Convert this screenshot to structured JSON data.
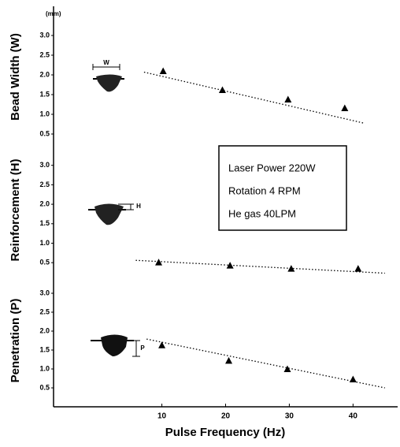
{
  "chart_data": [
    {
      "type": "scatter",
      "ylabel": "Bead Width (W)",
      "unit_label": "(mm)",
      "icon_label": "W",
      "ylim": [
        0.2,
        3.7
      ],
      "yticks": [
        0.5,
        {
          "value": 1.0,
          "label": "1.0"
        },
        1.5,
        {
          "value": 2.0,
          "label": "2.0"
        },
        2.5,
        {
          "value": 3.0,
          "label": "3.0"
        }
      ],
      "x": [
        10.2,
        19.5,
        29.8,
        38.7
      ],
      "values": [
        2.09,
        1.61,
        1.37,
        1.15
      ],
      "color": "#000000",
      "trend": {
        "x": [
          7.2,
          41.6
        ],
        "values": [
          2.07,
          0.78
        ]
      }
    },
    {
      "type": "scatter",
      "ylabel": "Reinforcement (H)",
      "icon_label": "H",
      "ylim": [
        0.2,
        3.5
      ],
      "yticks": [
        0.5,
        {
          "value": 1.0,
          "label": "1.0"
        },
        1.5,
        {
          "value": 2.0,
          "label": "2.0"
        },
        2.5,
        {
          "value": 3.0,
          "label": "3.0"
        }
      ],
      "x": [
        9.5,
        20.7,
        30.3,
        40.8
      ],
      "values": [
        0.5,
        0.42,
        0.34,
        0.34
      ],
      "color": "#000000",
      "trend": {
        "x": [
          5.9,
          45
        ],
        "values": [
          0.56,
          0.23
        ]
      },
      "annotations": [
        "Laser Power 220W",
        "Rotation 4 RPM",
        "He gas 40LPM"
      ]
    },
    {
      "type": "scatter",
      "ylabel": "Penetration (P)",
      "icon_label": "P",
      "ylim": [
        0,
        3.5
      ],
      "yticks": [
        0.5,
        {
          "value": 1.0,
          "label": "1.0"
        },
        1.5,
        {
          "value": 2.0,
          "label": "2.0"
        },
        2.5,
        {
          "value": 3.0,
          "label": "3.0"
        }
      ],
      "x": [
        10,
        20.5,
        29.7,
        40
      ],
      "values": [
        1.62,
        1.21,
        0.99,
        0.72
      ],
      "color": "#000000",
      "trend": {
        "x": [
          7.6,
          45
        ],
        "values": [
          1.79,
          0.5
        ]
      },
      "xlabel": "Pulse Frequency (Hz)",
      "xlim": [
        -7,
        47
      ],
      "xticks": [
        10,
        20,
        30,
        40
      ]
    }
  ]
}
